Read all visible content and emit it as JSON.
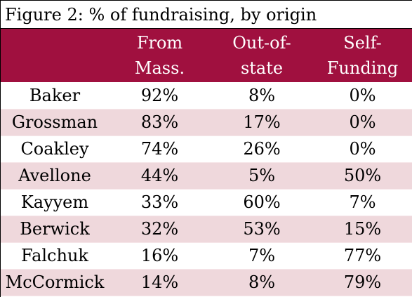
{
  "title": "Figure 2: % of fundraising, by origin",
  "colors": {
    "header_bg": "#a0103f",
    "header_text": "#ffffff",
    "stripe": "#efd8dc"
  },
  "headers": [
    {
      "lines": [
        "",
        ""
      ]
    },
    {
      "lines": [
        "From",
        "Mass."
      ]
    },
    {
      "lines": [
        "Out-of-",
        "state"
      ]
    },
    {
      "lines": [
        "Self-",
        "Funding"
      ]
    }
  ],
  "rows": [
    {
      "name": "Baker",
      "mass": "92%",
      "out_of_state": "8%",
      "self": "0%"
    },
    {
      "name": "Grossman",
      "mass": "83%",
      "out_of_state": "17%",
      "self": "0%"
    },
    {
      "name": "Coakley",
      "mass": "74%",
      "out_of_state": "26%",
      "self": "0%"
    },
    {
      "name": "Avellone",
      "mass": "44%",
      "out_of_state": "5%",
      "self": "50%"
    },
    {
      "name": "Kayyem",
      "mass": "33%",
      "out_of_state": "60%",
      "self": "7%"
    },
    {
      "name": "Berwick",
      "mass": "32%",
      "out_of_state": "53%",
      "self": "15%"
    },
    {
      "name": "Falchuk",
      "mass": "16%",
      "out_of_state": "7%",
      "self": "77%"
    },
    {
      "name": "McCormick",
      "mass": "14%",
      "out_of_state": "8%",
      "self": "79%"
    }
  ]
}
